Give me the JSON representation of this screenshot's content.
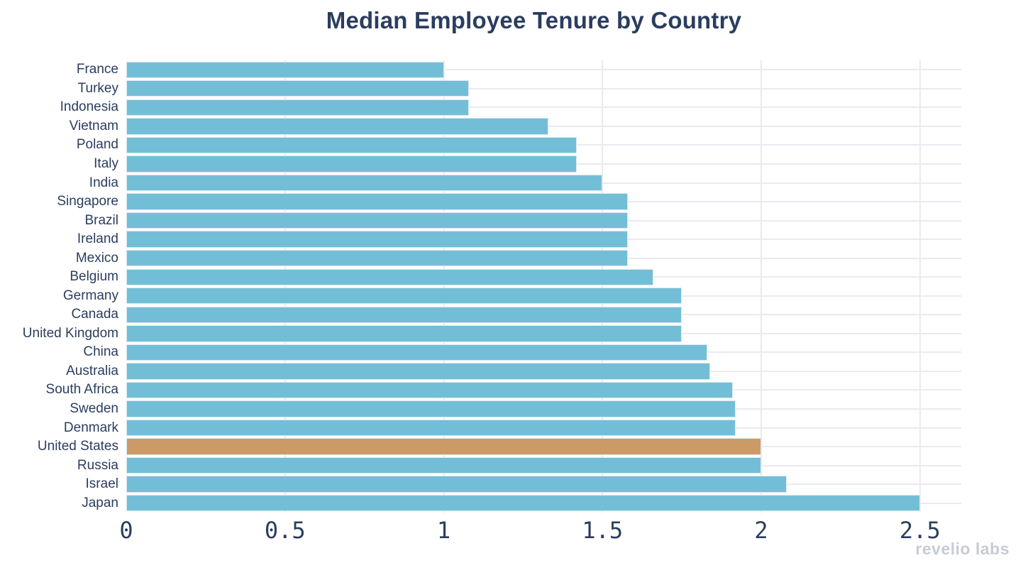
{
  "chart_data": {
    "type": "bar",
    "orientation": "horizontal",
    "title": "Median Employee Tenure by Country",
    "categories": [
      "France",
      "Turkey",
      "Indonesia",
      "Vietnam",
      "Poland",
      "Italy",
      "India",
      "Singapore",
      "Brazil",
      "Ireland",
      "Mexico",
      "Belgium",
      "Germany",
      "Canada",
      "United Kingdom",
      "China",
      "Australia",
      "South Africa",
      "Sweden",
      "Denmark",
      "United States",
      "Russia",
      "Israel",
      "Japan"
    ],
    "values": [
      1.0,
      1.08,
      1.08,
      1.33,
      1.42,
      1.42,
      1.5,
      1.58,
      1.58,
      1.58,
      1.58,
      1.66,
      1.75,
      1.75,
      1.75,
      1.83,
      1.84,
      1.91,
      1.92,
      1.92,
      2.0,
      2.0,
      2.08,
      2.5
    ],
    "highlighted_category": "United States",
    "x_ticks": [
      "0",
      "0.5",
      "1",
      "1.5",
      "2",
      "2.5"
    ],
    "xlim": [
      0,
      2.63
    ],
    "grid": true,
    "legend_position": "none"
  },
  "watermark": {
    "text": "revelio labs"
  },
  "colors": {
    "bar": "#73bed7",
    "highlight_bar": "#cc9a66",
    "text": "#2b3d5f",
    "gridline": "#eaeaf1",
    "bar_border": "#d9e8f1",
    "watermark": "#c6ccd4",
    "background": "#ffffff"
  }
}
